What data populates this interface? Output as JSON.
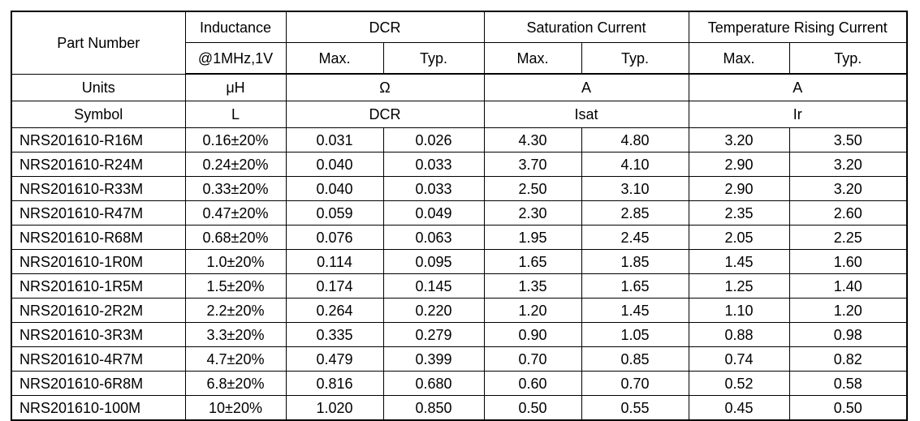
{
  "header": {
    "part_number": "Part Number",
    "inductance": "Inductance",
    "inductance_condition": "@1MHz,1V",
    "dcr": "DCR",
    "saturation_current": "Saturation Current",
    "temp_rising_current": "Temperature Rising Current",
    "max": "Max.",
    "typ": "Typ."
  },
  "units": {
    "label": "Units",
    "inductance": "μH",
    "dcr": "Ω",
    "saturation": "A",
    "temp_rising": "A"
  },
  "symbol": {
    "label": "Symbol",
    "inductance": "L",
    "dcr": "DCR",
    "saturation": "Isat",
    "temp_rising": "Ir"
  },
  "rows": [
    {
      "part": "NRS201610-R16M",
      "inductance": "0.16±20%",
      "dcr_max": "0.031",
      "dcr_typ": "0.026",
      "isat_max": "4.30",
      "isat_typ": "4.80",
      "ir_max": "3.20",
      "ir_typ": "3.50"
    },
    {
      "part": "NRS201610-R24M",
      "inductance": "0.24±20%",
      "dcr_max": "0.040",
      "dcr_typ": "0.033",
      "isat_max": "3.70",
      "isat_typ": "4.10",
      "ir_max": "2.90",
      "ir_typ": "3.20"
    },
    {
      "part": "NRS201610-R33M",
      "inductance": "0.33±20%",
      "dcr_max": "0.040",
      "dcr_typ": "0.033",
      "isat_max": "2.50",
      "isat_typ": "3.10",
      "ir_max": "2.90",
      "ir_typ": "3.20"
    },
    {
      "part": "NRS201610-R47M",
      "inductance": "0.47±20%",
      "dcr_max": "0.059",
      "dcr_typ": "0.049",
      "isat_max": "2.30",
      "isat_typ": "2.85",
      "ir_max": "2.35",
      "ir_typ": "2.60"
    },
    {
      "part": "NRS201610-R68M",
      "inductance": "0.68±20%",
      "dcr_max": "0.076",
      "dcr_typ": "0.063",
      "isat_max": "1.95",
      "isat_typ": "2.45",
      "ir_max": "2.05",
      "ir_typ": "2.25"
    },
    {
      "part": "NRS201610-1R0M",
      "inductance": "1.0±20%",
      "dcr_max": "0.114",
      "dcr_typ": "0.095",
      "isat_max": "1.65",
      "isat_typ": "1.85",
      "ir_max": "1.45",
      "ir_typ": "1.60"
    },
    {
      "part": "NRS201610-1R5M",
      "inductance": "1.5±20%",
      "dcr_max": "0.174",
      "dcr_typ": "0.145",
      "isat_max": "1.35",
      "isat_typ": "1.65",
      "ir_max": "1.25",
      "ir_typ": "1.40"
    },
    {
      "part": "NRS201610-2R2M",
      "inductance": "2.2±20%",
      "dcr_max": "0.264",
      "dcr_typ": "0.220",
      "isat_max": "1.20",
      "isat_typ": "1.45",
      "ir_max": "1.10",
      "ir_typ": "1.20"
    },
    {
      "part": "NRS201610-3R3M",
      "inductance": "3.3±20%",
      "dcr_max": "0.335",
      "dcr_typ": "0.279",
      "isat_max": "0.90",
      "isat_typ": "1.05",
      "ir_max": "0.88",
      "ir_typ": "0.98"
    },
    {
      "part": "NRS201610-4R7M",
      "inductance": "4.7±20%",
      "dcr_max": "0.479",
      "dcr_typ": "0.399",
      "isat_max": "0.70",
      "isat_typ": "0.85",
      "ir_max": "0.74",
      "ir_typ": "0.82"
    },
    {
      "part": "NRS201610-6R8M",
      "inductance": "6.8±20%",
      "dcr_max": "0.816",
      "dcr_typ": "0.680",
      "isat_max": "0.60",
      "isat_typ": "0.70",
      "ir_max": "0.52",
      "ir_typ": "0.58"
    },
    {
      "part": "NRS201610-100M",
      "inductance": "10±20%",
      "dcr_max": "1.020",
      "dcr_typ": "0.850",
      "isat_max": "0.50",
      "isat_typ": "0.55",
      "ir_max": "0.45",
      "ir_typ": "0.50"
    }
  ]
}
